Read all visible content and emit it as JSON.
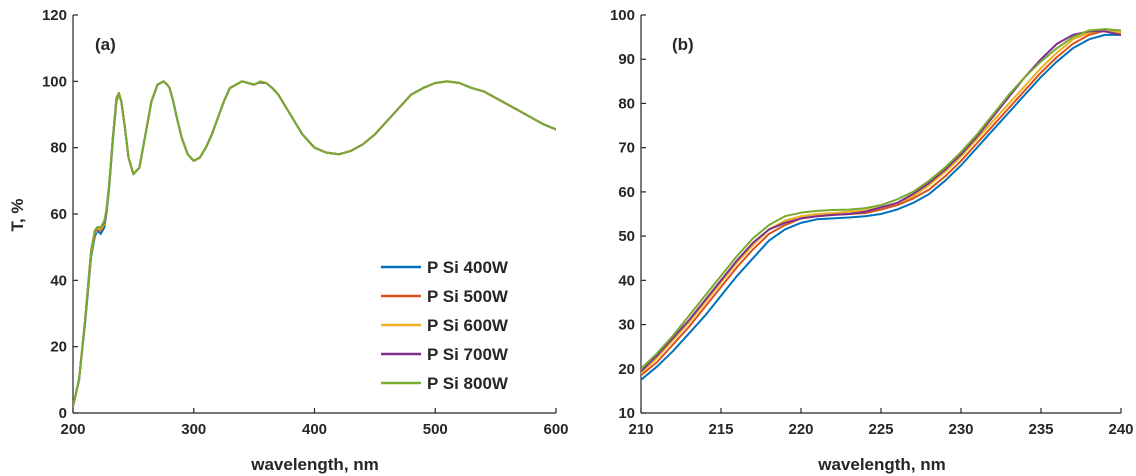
{
  "chart_data": [
    {
      "type": "line",
      "panel_label": "(a)",
      "xlabel": "wavelength, nm",
      "ylabel": "T, %",
      "xlim": [
        200,
        600
      ],
      "ylim": [
        0,
        120
      ],
      "xticks": [
        200,
        300,
        400,
        500,
        600
      ],
      "yticks": [
        0,
        20,
        40,
        60,
        80,
        100,
        120
      ],
      "grid": false,
      "legend": "bottom-right",
      "series": [
        {
          "name": "P Si 400W",
          "color": "#0072BD",
          "x": [
            200,
            205,
            210,
            215,
            218,
            220,
            223,
            226,
            228,
            230,
            233,
            236,
            238,
            240,
            243,
            246,
            250,
            255,
            260,
            265,
            270,
            275,
            278,
            280,
            283,
            286,
            290,
            295,
            300,
            305,
            310,
            315,
            320,
            325,
            330,
            335,
            340,
            345,
            350,
            353,
            355,
            360,
            365,
            370,
            380,
            390,
            400,
            410,
            420,
            430,
            440,
            450,
            460,
            470,
            480,
            490,
            500,
            510,
            520,
            530,
            540,
            550,
            560,
            570,
            580,
            590,
            600
          ],
          "y": [
            2,
            10,
            27,
            47,
            53,
            55,
            54,
            56,
            61,
            68,
            82,
            94,
            96,
            94,
            86,
            77,
            72,
            74,
            84,
            94,
            99,
            100,
            99,
            98,
            94,
            89,
            83,
            78,
            76,
            77,
            80,
            84,
            89,
            94,
            98,
            99,
            100,
            99.5,
            99,
            99.5,
            99.7,
            99.5,
            98,
            96,
            90,
            84,
            80,
            78.5,
            78,
            79,
            81,
            84,
            88,
            92,
            96,
            98,
            99.5,
            100,
            99.5,
            98,
            97,
            95,
            93,
            91,
            89,
            87,
            85.5
          ]
        },
        {
          "name": "P Si 500W",
          "color": "#D95319",
          "x": [
            200,
            205,
            210,
            215,
            218,
            220,
            223,
            226,
            228,
            230,
            233,
            236,
            238,
            240,
            243,
            246,
            250,
            255,
            260,
            265,
            270,
            275,
            278,
            280,
            283,
            286,
            290,
            295,
            300,
            305,
            310,
            315,
            320,
            325,
            330,
            335,
            340,
            345,
            350,
            353,
            355,
            360,
            365,
            370,
            380,
            390,
            400,
            410,
            420,
            430,
            440,
            450,
            460,
            470,
            480,
            490,
            500,
            510,
            520,
            530,
            540,
            550,
            560,
            570,
            580,
            590,
            600
          ],
          "y": [
            2,
            10,
            28,
            48,
            54,
            55.5,
            55,
            57,
            62,
            69,
            83,
            94.5,
            96,
            94,
            86,
            77,
            72,
            74,
            84,
            94,
            99,
            100,
            99,
            98,
            94,
            89,
            83,
            78,
            76,
            77,
            80,
            84,
            89,
            94,
            98,
            99,
            100,
            99.5,
            99,
            99.5,
            99.7,
            99.5,
            98,
            96,
            90,
            84,
            80,
            78.5,
            78,
            79,
            81,
            84,
            88,
            92,
            96,
            98,
            99.5,
            100,
            99.5,
            98,
            97,
            95,
            93,
            91,
            89,
            87,
            85.5
          ]
        },
        {
          "name": "P Si 600W",
          "color": "#EDB120",
          "x": [
            200,
            205,
            210,
            215,
            218,
            220,
            223,
            226,
            228,
            230,
            233,
            236,
            238,
            240,
            243,
            246,
            250,
            255,
            260,
            265,
            270,
            275,
            278,
            280,
            283,
            286,
            290,
            295,
            300,
            305,
            310,
            315,
            320,
            325,
            330,
            335,
            340,
            345,
            350,
            353,
            355,
            360,
            365,
            370,
            380,
            390,
            400,
            410,
            420,
            430,
            440,
            450,
            460,
            470,
            480,
            490,
            500,
            510,
            520,
            530,
            540,
            550,
            560,
            570,
            580,
            590,
            600
          ],
          "y": [
            2,
            10,
            28,
            48,
            54,
            55.5,
            55.5,
            57,
            62,
            69,
            83,
            94.5,
            96,
            94,
            86,
            77,
            72,
            74,
            84,
            94,
            99,
            100,
            99,
            98,
            94,
            89,
            83,
            78,
            76,
            77,
            80,
            84,
            89,
            94,
            98,
            99,
            100,
            99.5,
            99,
            99.5,
            99.7,
            99.5,
            98,
            96,
            90,
            84,
            80,
            78.5,
            78,
            79,
            81,
            84,
            88,
            92,
            96,
            98,
            99.5,
            100,
            99.5,
            98,
            97,
            95,
            93,
            91,
            89,
            87,
            85.5
          ]
        },
        {
          "name": "P Si 700W",
          "color": "#7E2F8E",
          "x": [
            200,
            205,
            210,
            215,
            218,
            220,
            223,
            226,
            228,
            230,
            233,
            236,
            238,
            240,
            243,
            246,
            250,
            255,
            260,
            265,
            270,
            275,
            278,
            280,
            283,
            286,
            290,
            295,
            300,
            305,
            310,
            315,
            320,
            325,
            330,
            335,
            340,
            345,
            350,
            353,
            355,
            360,
            365,
            370,
            380,
            390,
            400,
            410,
            420,
            430,
            440,
            450,
            460,
            470,
            480,
            490,
            500,
            510,
            520,
            530,
            540,
            550,
            560,
            570,
            580,
            590,
            600
          ],
          "y": [
            2,
            10,
            28,
            49,
            54.5,
            56,
            56,
            57.5,
            62,
            69,
            83,
            95,
            96.5,
            94,
            86,
            77,
            72,
            74,
            84,
            94,
            99,
            100,
            99,
            98,
            94,
            89,
            83,
            78,
            76,
            77,
            80,
            84,
            89,
            94,
            98,
            99,
            100,
            99.5,
            99,
            99.5,
            99.7,
            99.5,
            98,
            96,
            90,
            84,
            80,
            78.5,
            78,
            79,
            81,
            84,
            88,
            92,
            96,
            98,
            99.5,
            100,
            99.5,
            98,
            97,
            95,
            93,
            91,
            89,
            87,
            85.5
          ]
        },
        {
          "name": "P Si 800W",
          "color": "#77AC30",
          "x": [
            200,
            205,
            210,
            215,
            218,
            220,
            223,
            226,
            228,
            230,
            233,
            236,
            238,
            240,
            243,
            246,
            250,
            255,
            260,
            265,
            270,
            275,
            278,
            280,
            283,
            286,
            290,
            295,
            300,
            305,
            310,
            315,
            320,
            325,
            330,
            335,
            340,
            345,
            350,
            353,
            355,
            360,
            365,
            370,
            380,
            390,
            400,
            410,
            420,
            430,
            440,
            450,
            460,
            470,
            480,
            490,
            500,
            510,
            520,
            530,
            540,
            550,
            560,
            570,
            580,
            590,
            600
          ],
          "y": [
            2,
            10,
            28,
            49,
            55,
            56,
            56,
            58,
            62,
            69,
            83,
            95,
            96.5,
            94,
            86,
            77,
            72,
            74,
            84,
            94,
            99,
            100,
            99,
            98,
            94,
            89,
            83,
            78,
            76,
            77,
            80,
            84,
            89,
            94,
            98,
            99,
            100,
            99.5,
            99,
            99.5,
            100,
            99.5,
            98,
            96,
            90,
            84,
            80,
            78.5,
            78,
            79,
            81,
            84,
            88,
            92,
            96,
            98,
            99.5,
            100,
            99.5,
            98,
            97,
            95,
            93,
            91,
            89,
            87,
            85.5
          ]
        }
      ]
    },
    {
      "type": "line",
      "panel_label": "(b)",
      "xlabel": "wavelength, nm",
      "ylabel": "",
      "xlim": [
        210,
        240
      ],
      "ylim": [
        10,
        100
      ],
      "xticks": [
        210,
        215,
        220,
        225,
        230,
        235,
        240
      ],
      "yticks": [
        10,
        20,
        30,
        40,
        50,
        60,
        70,
        80,
        90,
        100
      ],
      "grid": false,
      "legend": "none",
      "series": [
        {
          "name": "P Si 400W",
          "color": "#0072BD",
          "x": [
            210,
            211,
            212,
            213,
            214,
            215,
            216,
            217,
            218,
            219,
            220,
            221,
            222,
            223,
            224,
            225,
            226,
            227,
            228,
            229,
            230,
            231,
            232,
            233,
            234,
            235,
            236,
            237,
            238,
            239,
            240
          ],
          "y": [
            17.5,
            20.5,
            24,
            28,
            32,
            36.5,
            41,
            45,
            49,
            51.5,
            53,
            53.8,
            54,
            54.2,
            54.5,
            55,
            56,
            57.5,
            59.5,
            62.5,
            66,
            70,
            74,
            78,
            82,
            86,
            89.5,
            92.5,
            94.5,
            95.5,
            95.5
          ]
        },
        {
          "name": "P Si 500W",
          "color": "#D95319",
          "x": [
            210,
            211,
            212,
            213,
            214,
            215,
            216,
            217,
            218,
            219,
            220,
            221,
            222,
            223,
            224,
            225,
            226,
            227,
            228,
            229,
            230,
            231,
            232,
            233,
            234,
            235,
            236,
            237,
            238,
            239,
            240
          ],
          "y": [
            18.5,
            21.5,
            25.5,
            29.5,
            34,
            38.5,
            43,
            47,
            50.5,
            52.5,
            54,
            54.5,
            54.8,
            55,
            55.2,
            56,
            57,
            58.5,
            60.5,
            63.5,
            67,
            71,
            75,
            79,
            83,
            87,
            90.5,
            93.5,
            95.5,
            96.5,
            95.5
          ]
        },
        {
          "name": "P Si 600W",
          "color": "#EDB120",
          "x": [
            210,
            211,
            212,
            213,
            214,
            215,
            216,
            217,
            218,
            219,
            220,
            221,
            222,
            223,
            224,
            225,
            226,
            227,
            228,
            229,
            230,
            231,
            232,
            233,
            234,
            235,
            236,
            237,
            238,
            239,
            240
          ],
          "y": [
            19,
            22.5,
            26.5,
            30.5,
            35,
            39.5,
            44,
            48,
            51.5,
            53.5,
            54.5,
            55,
            55.2,
            55.5,
            55.8,
            56.5,
            57.5,
            59,
            61.5,
            64.5,
            68,
            72,
            76,
            80,
            84,
            88,
            91.5,
            94.5,
            96,
            96.5,
            96
          ]
        },
        {
          "name": "P Si 700W",
          "color": "#7E2F8E",
          "x": [
            210,
            211,
            212,
            213,
            214,
            215,
            216,
            217,
            218,
            219,
            220,
            221,
            222,
            223,
            224,
            225,
            226,
            227,
            228,
            229,
            230,
            231,
            232,
            233,
            234,
            235,
            236,
            237,
            238,
            239,
            240
          ],
          "y": [
            19.5,
            23,
            27,
            31,
            35.5,
            40,
            44.5,
            48.5,
            51.5,
            53,
            54,
            54.5,
            54.8,
            55,
            55.5,
            56.5,
            57.5,
            59.5,
            62,
            65,
            68.5,
            72.5,
            77,
            81.5,
            86,
            90,
            93.5,
            95.5,
            96.3,
            96.3,
            95.5
          ]
        },
        {
          "name": "P Si 800W",
          "color": "#77AC30",
          "x": [
            210,
            211,
            212,
            213,
            214,
            215,
            216,
            217,
            218,
            219,
            220,
            221,
            222,
            223,
            224,
            225,
            226,
            227,
            228,
            229,
            230,
            231,
            232,
            233,
            234,
            235,
            236,
            237,
            238,
            239,
            240
          ],
          "y": [
            20,
            23.5,
            27.5,
            32,
            36.5,
            41,
            45.5,
            49.5,
            52.5,
            54.5,
            55.3,
            55.7,
            55.9,
            56,
            56.3,
            57,
            58.3,
            60,
            62.5,
            65.5,
            69,
            73,
            77.5,
            82,
            86,
            89.5,
            92.5,
            95,
            96.5,
            96.8,
            96.5
          ]
        }
      ]
    }
  ]
}
